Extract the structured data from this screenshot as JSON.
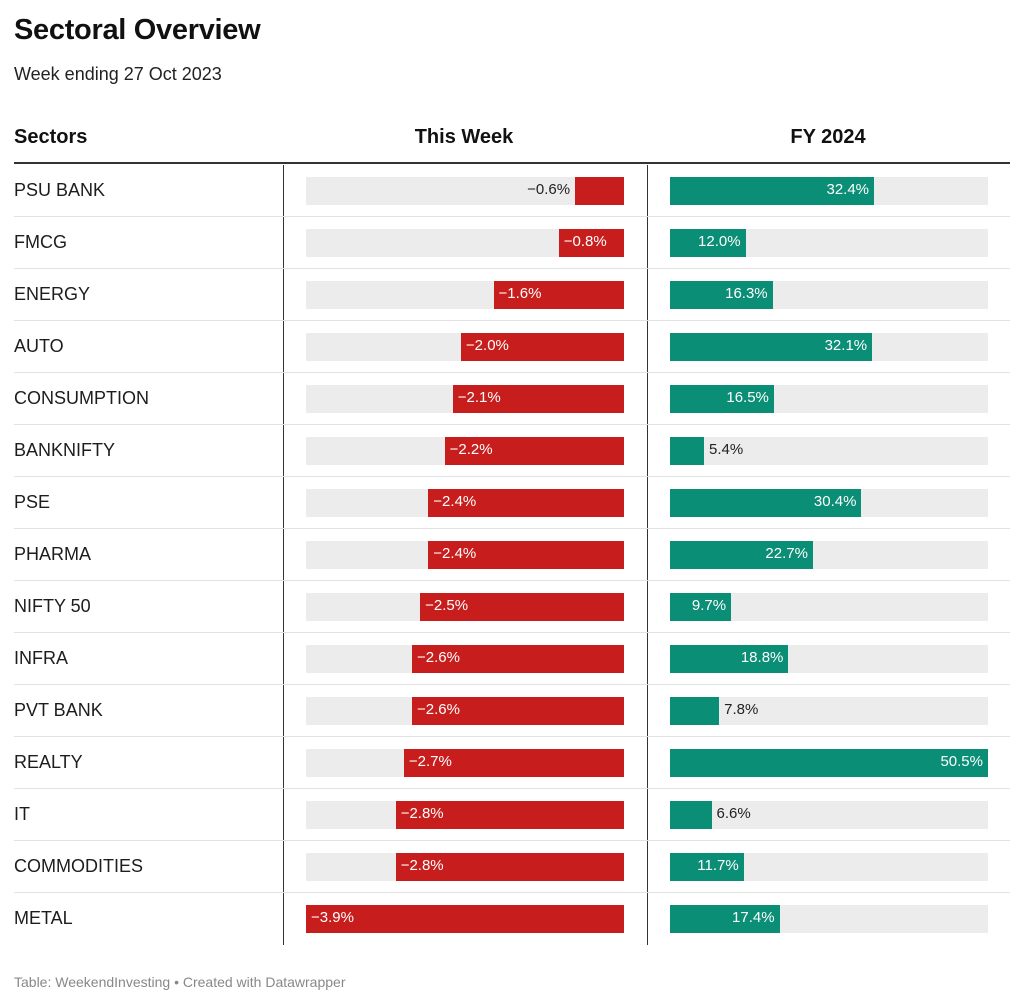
{
  "title": "Sectoral Overview",
  "subtitle": "Week ending 27 Oct 2023",
  "columns": {
    "sectors": "Sectors",
    "this_week": "This Week",
    "fy": "FY 2024"
  },
  "footer": "Table: WeekendInvesting • Created with Datawrapper",
  "colors": {
    "negative": "#c71e1d",
    "positive": "#0a8e75",
    "track": "#ececec"
  },
  "chart_data": {
    "type": "table",
    "title": "Sectoral Overview",
    "subtitle": "Week ending 27 Oct 2023",
    "series": [
      {
        "name": "This Week",
        "max_abs": 3.9
      },
      {
        "name": "FY 2024",
        "max_abs": 50.5
      }
    ],
    "rows": [
      {
        "sector": "PSU BANK",
        "week": -0.6,
        "week_label": "−0.6%",
        "fy": 32.4,
        "fy_label": "32.4%"
      },
      {
        "sector": "FMCG",
        "week": -0.8,
        "week_label": "−0.8%",
        "fy": 12.0,
        "fy_label": "12.0%"
      },
      {
        "sector": "ENERGY",
        "week": -1.6,
        "week_label": "−1.6%",
        "fy": 16.3,
        "fy_label": "16.3%"
      },
      {
        "sector": "AUTO",
        "week": -2.0,
        "week_label": "−2.0%",
        "fy": 32.1,
        "fy_label": "32.1%"
      },
      {
        "sector": "CONSUMPTION",
        "week": -2.1,
        "week_label": "−2.1%",
        "fy": 16.5,
        "fy_label": "16.5%"
      },
      {
        "sector": "BANKNIFTY",
        "week": -2.2,
        "week_label": "−2.2%",
        "fy": 5.4,
        "fy_label": "5.4%"
      },
      {
        "sector": "PSE",
        "week": -2.4,
        "week_label": "−2.4%",
        "fy": 30.4,
        "fy_label": "30.4%"
      },
      {
        "sector": "PHARMA",
        "week": -2.4,
        "week_label": "−2.4%",
        "fy": 22.7,
        "fy_label": "22.7%"
      },
      {
        "sector": "NIFTY 50",
        "week": -2.5,
        "week_label": "−2.5%",
        "fy": 9.7,
        "fy_label": "9.7%"
      },
      {
        "sector": "INFRA",
        "week": -2.6,
        "week_label": "−2.6%",
        "fy": 18.8,
        "fy_label": "18.8%"
      },
      {
        "sector": "PVT BANK",
        "week": -2.6,
        "week_label": "−2.6%",
        "fy": 7.8,
        "fy_label": "7.8%"
      },
      {
        "sector": "REALTY",
        "week": -2.7,
        "week_label": "−2.7%",
        "fy": 50.5,
        "fy_label": "50.5%"
      },
      {
        "sector": "IT",
        "week": -2.8,
        "week_label": "−2.8%",
        "fy": 6.6,
        "fy_label": "6.6%"
      },
      {
        "sector": "COMMODITIES",
        "week": -2.8,
        "week_label": "−2.8%",
        "fy": 11.7,
        "fy_label": "11.7%"
      },
      {
        "sector": "METAL",
        "week": -3.9,
        "week_label": "−3.9%",
        "fy": 17.4,
        "fy_label": "17.4%"
      }
    ]
  }
}
